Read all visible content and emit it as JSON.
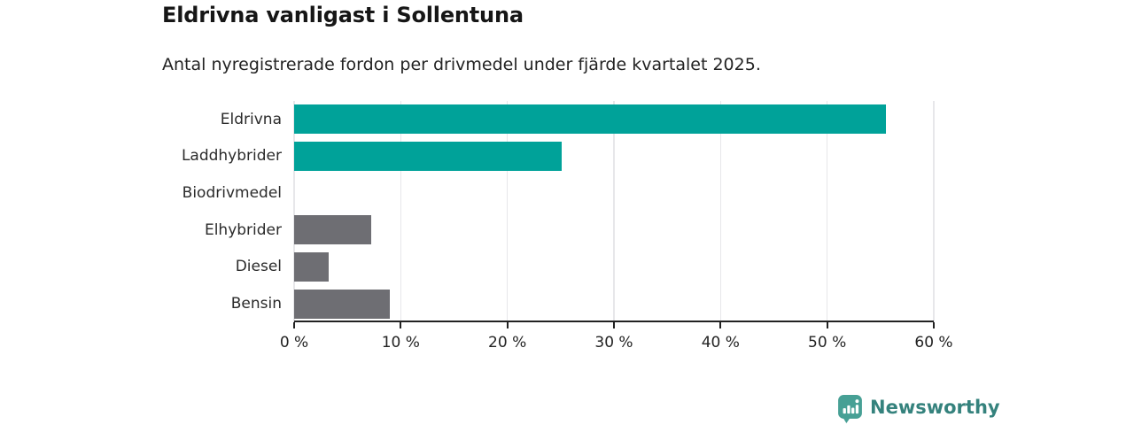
{
  "header": {
    "title": "Eldrivna vanligast i Sollentuna",
    "subtitle": "Antal nyregistrerade fordon per drivmedel under fjärde kvartalet 2025."
  },
  "chart_data": {
    "type": "bar",
    "orientation": "horizontal",
    "title": "Eldrivna vanligast i Sollentuna",
    "subtitle": "Antal nyregistrerade fordon per drivmedel under fjärde kvartalet 2025.",
    "categories": [
      "Eldrivna",
      "Laddhybrider",
      "Biodrivmedel",
      "Elhybrider",
      "Diesel",
      "Bensin"
    ],
    "values": [
      55.5,
      25.1,
      0,
      7.2,
      3.2,
      9
    ],
    "unit": "%",
    "bar_colors": [
      "#00A299",
      "#00A299",
      "#6E6E73",
      "#6E6E73",
      "#6E6E73",
      "#6E6E73"
    ],
    "xlabel": "",
    "ylabel": "",
    "xlim": [
      0,
      60
    ],
    "x_ticks": [
      0,
      10,
      20,
      30,
      40,
      50,
      60
    ],
    "x_tick_labels": [
      "0 %",
      "10 %",
      "20 %",
      "30 %",
      "40 %",
      "50 %",
      "60 %"
    ],
    "grid": "vertical-gridlines-on",
    "legend": "none"
  },
  "branding": {
    "logo_text": "Newsworthy",
    "logo_icon": "newsworthy-bar-chart-bubble-icon",
    "logo_text_color": "#35827D",
    "logo_icon_color": "#47A095"
  },
  "colors": {
    "accent_teal": "#00A299",
    "neutral_gray": "#6E6E73",
    "gridline": "#E7E7EA",
    "axis": "#222222",
    "title_text": "#161616",
    "body_text": "#232323"
  }
}
